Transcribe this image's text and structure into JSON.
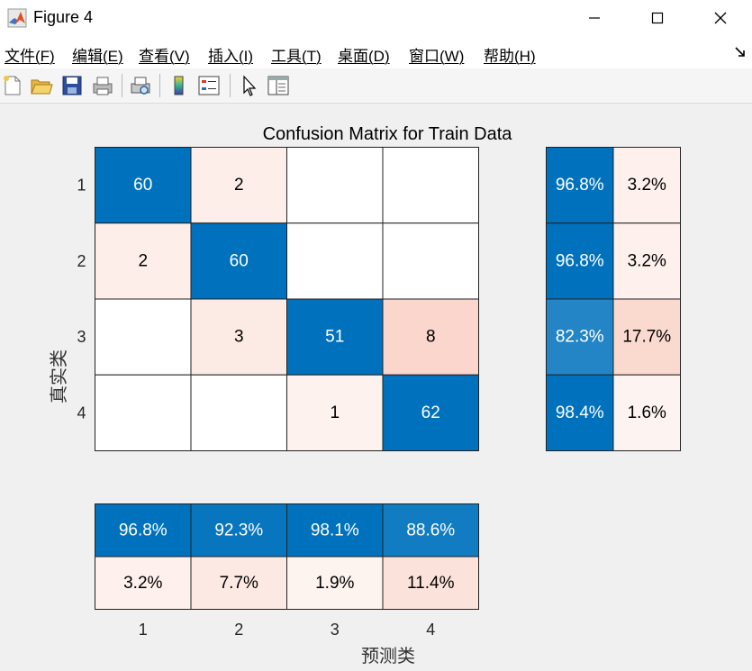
{
  "window": {
    "title": "Figure 4",
    "controls": {
      "minimize": "minimize-icon",
      "maximize": "maximize-icon",
      "close": "close-icon"
    }
  },
  "menu": {
    "items": [
      "文件(F)",
      "编辑(E)",
      "查看(V)",
      "插入(I)",
      "工具(T)",
      "桌面(D)",
      "窗口(W)",
      "帮助(H)"
    ]
  },
  "toolbar": {
    "icons": [
      "new-figure-icon",
      "open-file-icon",
      "save-icon",
      "print-icon",
      "print-preview-icon",
      "colorbar-icon",
      "legend-icon",
      "pointer-icon",
      "property-inspector-icon"
    ]
  },
  "colors": {
    "high": "#0072BD",
    "low_error": "#FCEEE9",
    "low_correct": "#FFFFFF",
    "dark_text": "#000000",
    "light_text": "#FFFFFF"
  },
  "chart_data": {
    "type": "heatmap",
    "title": "Confusion Matrix for Train Data",
    "ylabel": "真实类",
    "xlabel": "预测类",
    "classes": [
      "1",
      "2",
      "3",
      "4"
    ],
    "matrix": [
      [
        60,
        2,
        0,
        0
      ],
      [
        2,
        60,
        0,
        0
      ],
      [
        0,
        3,
        51,
        8
      ],
      [
        0,
        0,
        1,
        62
      ]
    ],
    "row_summary": {
      "correct": [
        "96.8%",
        "96.8%",
        "82.3%",
        "98.4%"
      ],
      "incorrect": [
        "3.2%",
        "3.2%",
        "17.7%",
        "1.6%"
      ]
    },
    "column_summary": {
      "correct": [
        "96.8%",
        "92.3%",
        "98.1%",
        "88.6%"
      ],
      "incorrect": [
        "3.2%",
        "7.7%",
        "1.9%",
        "11.4%"
      ]
    }
  }
}
